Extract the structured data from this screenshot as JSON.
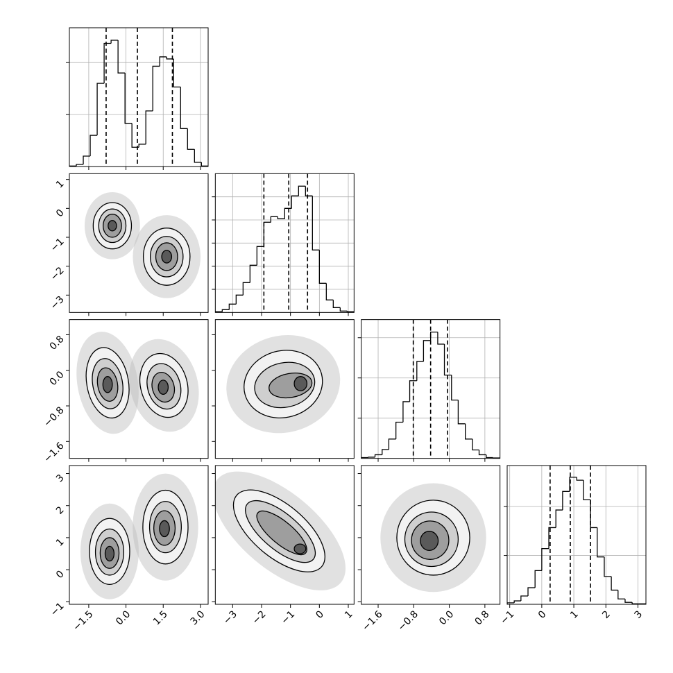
{
  "chart_data": {
    "type": "corner",
    "line_color": "#000000",
    "grid": true,
    "contour_fills": [
      "#f2f2f2",
      "#cfcfcf",
      "#9e9e9e",
      "#5a5a5a"
    ],
    "haze_color": "#bdbdbd",
    "params": [
      {
        "lim": [
          -2.28,
          3.31
        ],
        "ticks": [
          {
            "value": -1.5,
            "label": "−1.5"
          },
          {
            "value": 0,
            "label": "0.0"
          },
          1.5,
          {
            "value": 3,
            "label": "3.0"
          }
        ]
      },
      {
        "lim": [
          -3.6,
          1.2
        ],
        "ticks": [
          {
            "value": -3,
            "label": "−3"
          },
          {
            "value": -2,
            "label": "−2"
          },
          {
            "value": -1,
            "label": "−1"
          },
          0,
          1
        ]
      },
      {
        "lim": [
          -1.98,
          1.14
        ],
        "ticks": [
          {
            "value": -1.6,
            "label": "−1.6"
          },
          {
            "value": -0.8,
            "label": "−0.8"
          },
          {
            "value": 0,
            "label": "0.0"
          },
          0.8
        ]
      },
      {
        "lim": [
          -1.08,
          3.25
        ],
        "ticks": [
          {
            "value": -1,
            "label": "−1"
          },
          0,
          1,
          2,
          3
        ]
      }
    ],
    "histograms": [
      {
        "bins": [
          -2.28,
          -2.0,
          -1.72,
          -1.44,
          -1.16,
          -0.88,
          -0.6,
          -0.32,
          -0.04,
          0.24,
          0.52,
          0.8,
          1.08,
          1.36,
          1.64,
          1.92,
          2.2,
          2.48,
          2.76,
          3.04,
          3.32
        ],
        "values": [
          0.01,
          0.04,
          0.2,
          0.6,
          1.6,
          2.37,
          2.43,
          1.8,
          0.83,
          0.37,
          0.43,
          1.07,
          1.93,
          2.11,
          2.07,
          1.53,
          0.73,
          0.33,
          0.08,
          0.01
        ],
        "quantiles": [
          -0.8,
          0.46,
          1.87
        ],
        "ylim": [
          0,
          2.67
        ],
        "yticks": [
          1,
          2
        ]
      },
      {
        "bins": [
          -3.6,
          -3.36,
          -3.12,
          -2.88,
          -2.64,
          -2.4,
          -2.16,
          -1.92,
          -1.68,
          -1.44,
          -1.2,
          -0.96,
          -0.72,
          -0.48,
          -0.24,
          0,
          0.24,
          0.48,
          0.72,
          0.96,
          1.2
        ],
        "values": [
          0.03,
          0.12,
          0.36,
          0.75,
          1.29,
          2.04,
          2.85,
          3.9,
          4.14,
          4.05,
          4.5,
          5.04,
          5.46,
          5.04,
          2.7,
          1.26,
          0.54,
          0.21,
          0.06,
          0.03
        ],
        "quantiles": [
          -1.92,
          -1.06,
          -0.41
        ],
        "ylim": [
          0,
          6
        ],
        "yticks": [
          1,
          2,
          3,
          4,
          5
        ]
      },
      {
        "bins": [
          -1.98,
          -1.82,
          -1.67,
          -1.51,
          -1.36,
          -1.2,
          -1.04,
          -0.89,
          -0.73,
          -0.58,
          -0.42,
          -0.26,
          -0.11,
          0.05,
          0.2,
          0.36,
          0.52,
          0.67,
          0.83,
          0.98,
          1.14
        ],
        "values": [
          0.02,
          0.03,
          0.09,
          0.22,
          0.48,
          0.9,
          1.41,
          1.93,
          2.41,
          2.93,
          3.14,
          2.84,
          2.07,
          1.45,
          0.86,
          0.48,
          0.21,
          0.09,
          0.02,
          0.01
        ],
        "quantiles": [
          -0.81,
          -0.42,
          -0.04
        ],
        "ylim": [
          0,
          3.45
        ],
        "yticks": [
          1,
          2,
          3
        ]
      },
      {
        "bins": [
          -1.08,
          -0.86,
          -0.65,
          -0.43,
          -0.21,
          0.0,
          0.22,
          0.44,
          0.65,
          0.87,
          1.09,
          1.3,
          1.52,
          1.73,
          1.95,
          2.17,
          2.38,
          2.6,
          2.82,
          3.03,
          3.25
        ],
        "values": [
          0.03,
          0.07,
          0.17,
          0.34,
          0.69,
          1.14,
          1.57,
          1.93,
          2.31,
          2.6,
          2.54,
          2.14,
          1.57,
          0.97,
          0.57,
          0.29,
          0.11,
          0.04,
          0.01,
          0.01
        ],
        "quantiles": [
          0.26,
          0.89,
          1.52
        ],
        "ylim": [
          0,
          2.84
        ],
        "yticks": [
          1,
          2
        ]
      }
    ],
    "panels": [
      {
        "row": 1,
        "col": 0,
        "levels": [
          [
            -0.55,
            -0.6,
            0.77,
            0.8,
            0
          ],
          [
            -0.55,
            -0.6,
            0.55,
            0.58,
            0
          ],
          [
            -0.55,
            -0.6,
            0.37,
            0.4,
            0
          ],
          [
            -0.55,
            -0.6,
            0.17,
            0.18,
            0
          ],
          [
            1.64,
            -1.67,
            0.94,
            0.99,
            0
          ],
          [
            1.64,
            -1.67,
            0.66,
            0.7,
            0
          ],
          [
            1.64,
            -1.67,
            0.44,
            0.48,
            0
          ],
          [
            1.64,
            -1.67,
            0.2,
            0.22,
            0
          ]
        ]
      },
      {
        "row": 2,
        "col": 0,
        "levels": [
          [
            -0.74,
            -0.28,
            0.84,
            0.8,
            -10
          ],
          [
            -0.74,
            -0.3,
            0.6,
            0.57,
            -10
          ],
          [
            -0.74,
            -0.32,
            0.4,
            0.38,
            -10
          ],
          [
            -0.74,
            -0.32,
            0.19,
            0.18,
            0
          ],
          [
            1.53,
            -0.34,
            0.94,
            0.73,
            -15
          ],
          [
            1.53,
            -0.36,
            0.66,
            0.52,
            -15
          ],
          [
            1.5,
            -0.38,
            0.44,
            0.34,
            -15
          ],
          [
            1.5,
            -0.38,
            0.2,
            0.16,
            0
          ]
        ]
      },
      {
        "row": 2,
        "col": 1,
        "levels": [
          [
            -1.25,
            -0.31,
            1.37,
            0.75,
            -15
          ],
          [
            -1.2,
            -0.33,
            1.05,
            0.5,
            -12
          ],
          [
            -1.0,
            -0.34,
            0.75,
            0.27,
            -10
          ],
          [
            -0.65,
            -0.3,
            0.22,
            0.16,
            0
          ]
        ]
      },
      {
        "row": 3,
        "col": 0,
        "levels": [
          [
            -0.66,
            0.57,
            0.81,
            1.03,
            0
          ],
          [
            -0.66,
            0.55,
            0.57,
            0.72,
            0
          ],
          [
            -0.66,
            0.52,
            0.38,
            0.48,
            0
          ],
          [
            -0.66,
            0.5,
            0.18,
            0.23,
            0
          ],
          [
            1.59,
            1.33,
            0.91,
            1.15,
            0
          ],
          [
            1.59,
            1.33,
            0.64,
            0.8,
            0
          ],
          [
            1.55,
            1.3,
            0.43,
            0.54,
            0
          ],
          [
            1.55,
            1.28,
            0.2,
            0.25,
            0
          ]
        ]
      },
      {
        "row": 3,
        "col": 1,
        "levels": [
          [
            -1.39,
            1.21,
            1.92,
            0.82,
            40
          ],
          [
            -1.35,
            1.19,
            1.49,
            0.56,
            40
          ],
          [
            -1.3,
            1.15,
            1.08,
            0.35,
            40
          ],
          [
            -0.67,
            0.65,
            0.2,
            0.15,
            0
          ]
        ]
      },
      {
        "row": 3,
        "col": 2,
        "levels": [
          [
            -0.36,
            1.0,
            0.82,
            1.17,
            0
          ],
          [
            -0.4,
            0.95,
            0.6,
            0.85,
            0
          ],
          [
            -0.43,
            0.92,
            0.42,
            0.6,
            0
          ],
          [
            -0.45,
            0.9,
            0.2,
            0.3,
            0
          ]
        ]
      }
    ]
  }
}
